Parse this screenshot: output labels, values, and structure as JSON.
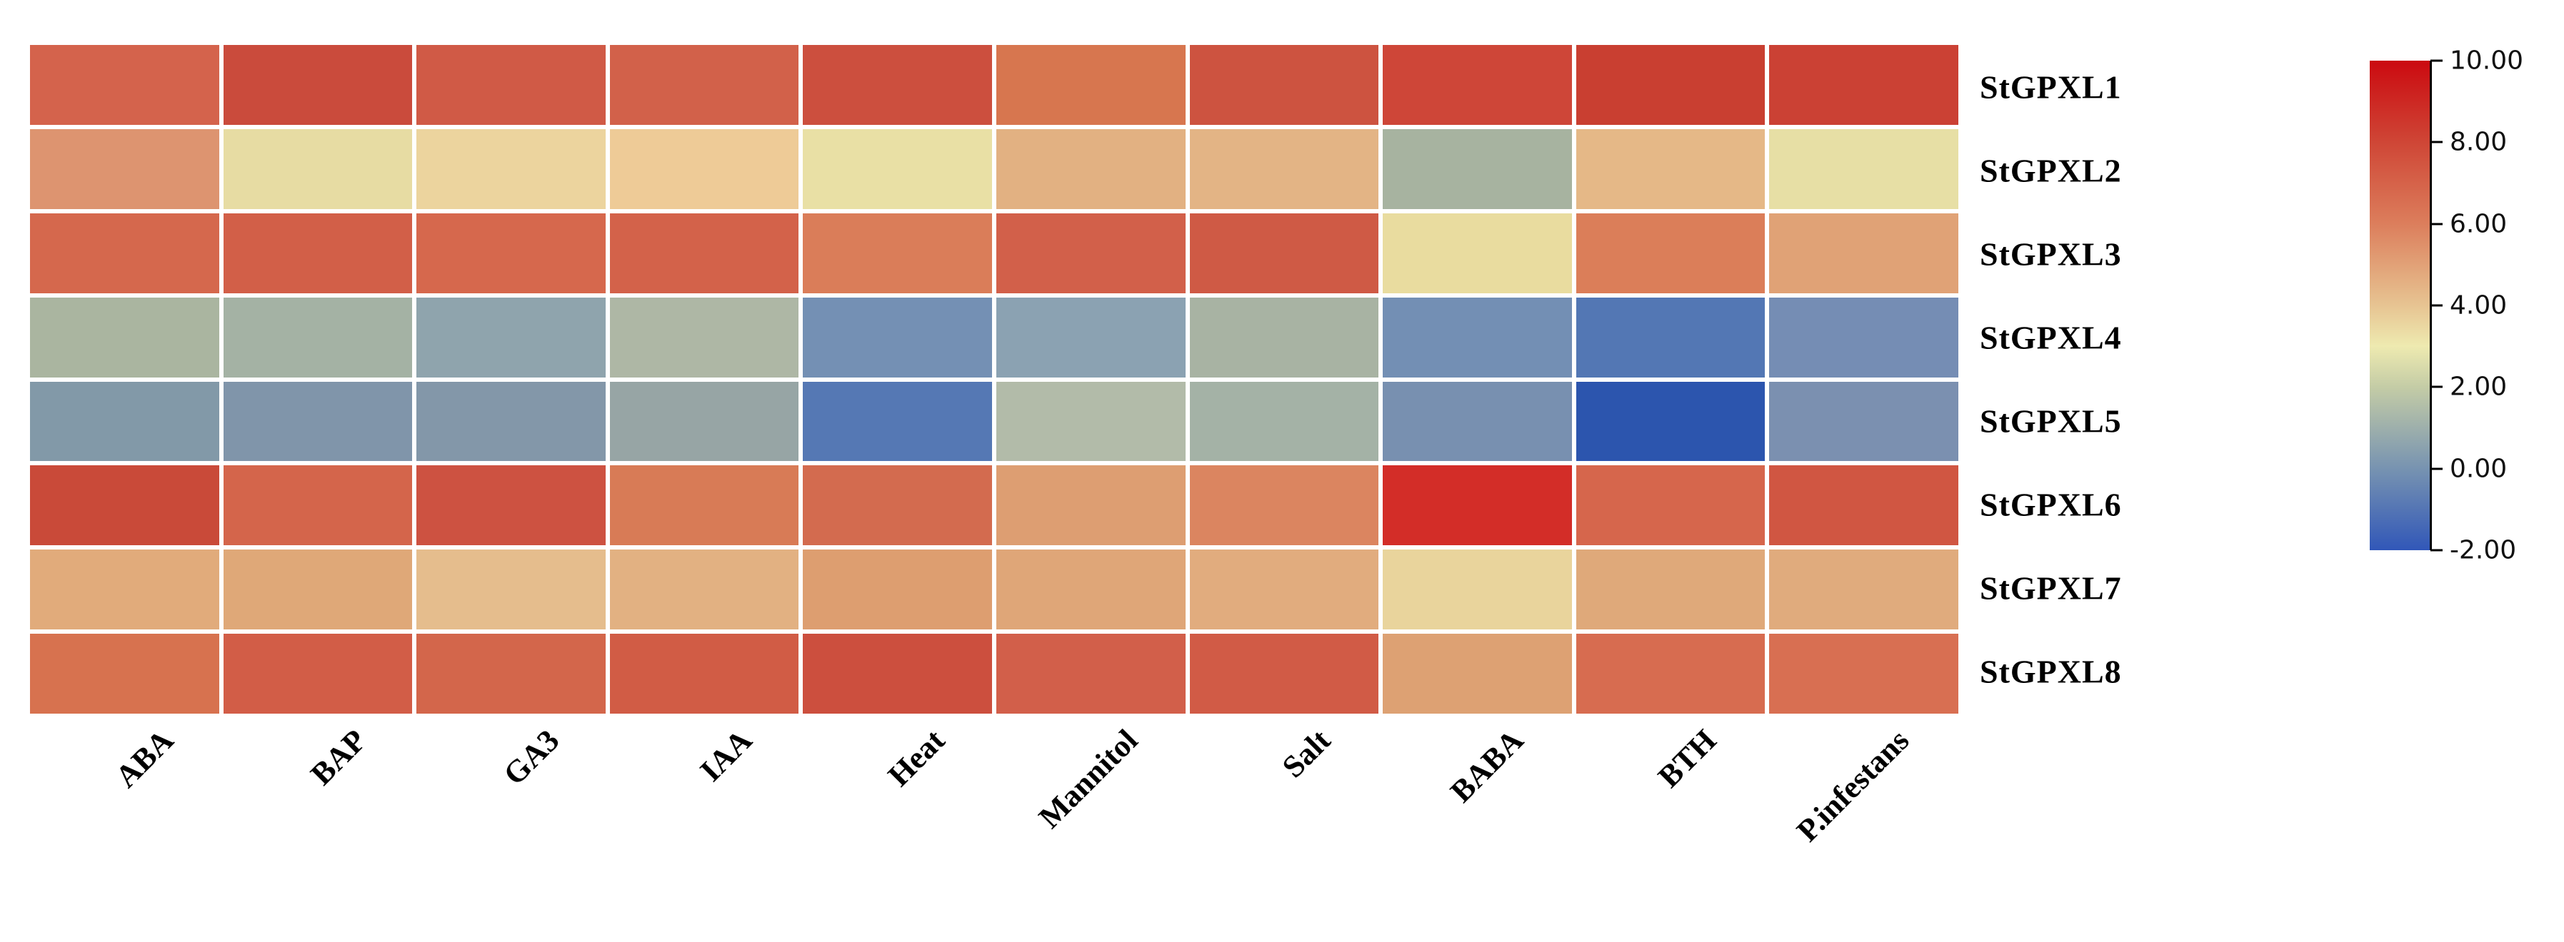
{
  "figure": {
    "description": "Expression heatmap of StGPXL genes under hormone, abiotic and biotic stress treatments",
    "background_color": "#ffffff",
    "grid_gap_color": "#ffffff"
  },
  "chart_data": {
    "type": "heatmap",
    "title": "",
    "xlabel": "",
    "ylabel": "",
    "legend_position": "right",
    "grid": false,
    "rows": [
      "StGPXL1",
      "StGPXL2",
      "StGPXL3",
      "StGPXL4",
      "StGPXL5",
      "StGPXL6",
      "StGPXL7",
      "StGPXL8"
    ],
    "columns": [
      "ABA",
      "BAP",
      "GA3",
      "IAA",
      "Heat",
      "Mannitol",
      "Salt",
      "BABA",
      "BTH",
      "P.infestans"
    ],
    "values": [
      [
        6.8,
        7.8,
        7.2,
        7.0,
        7.7,
        6.2,
        7.5,
        8.0,
        8.2,
        8.1
      ],
      [
        5.2,
        3.3,
        3.7,
        4.0,
        3.2,
        4.5,
        4.4,
        1.2,
        4.4,
        3.2
      ],
      [
        6.6,
        6.9,
        6.6,
        6.8,
        6.0,
        6.9,
        7.2,
        3.2,
        6.0,
        5.0
      ],
      [
        1.4,
        1.2,
        0.4,
        1.5,
        -0.4,
        0.3,
        1.3,
        -0.4,
        -1.2,
        -0.4
      ],
      [
        0.2,
        0.1,
        0.2,
        0.9,
        -1.2,
        1.7,
        1.2,
        -0.2,
        -1.9,
        -0.1
      ],
      [
        7.9,
        6.7,
        7.5,
        6.1,
        6.5,
        5.1,
        5.8,
        9.3,
        6.6,
        7.3
      ],
      [
        4.7,
        4.8,
        4.2,
        4.5,
        5.0,
        4.8,
        4.6,
        3.5,
        4.7,
        4.7
      ],
      [
        6.3,
        7.0,
        6.7,
        7.1,
        7.6,
        7.0,
        7.1,
        5.0,
        6.4,
        6.3
      ]
    ],
    "cell_colors": [
      [
        "#d4634c",
        "#ca4b3c",
        "#d05a46",
        "#d2614a",
        "#cc4f3e",
        "#d7764f",
        "#cd5340",
        "#ce4638",
        "#c93f31",
        "#cb4134"
      ],
      [
        "#dd9470",
        "#e7dca3",
        "#ecd49e",
        "#eecb97",
        "#e9e0a5",
        "#e2b182",
        "#e3b485",
        "#a7b3a0",
        "#e5b887",
        "#e7dfa5"
      ],
      [
        "#d5684d",
        "#d25f48",
        "#d6684d",
        "#d3624a",
        "#da7d59",
        "#d2604a",
        "#cf5a45",
        "#e9dc9f",
        "#db7e59",
        "#e0a276"
      ],
      [
        "#aab5a0",
        "#a4b2a4",
        "#8fa4ad",
        "#aeb7a5",
        "#7490b4",
        "#8ba2b2",
        "#a8b3a3",
        "#738fb4",
        "#5377b4",
        "#758db4"
      ],
      [
        "#8299a8",
        "#8095aa",
        "#8397a9",
        "#97a5a5",
        "#5578b4",
        "#b2bba9",
        "#a4b2a6",
        "#7890b0",
        "#2c55ae",
        "#7b90b0"
      ],
      [
        "#c94a39",
        "#d4654b",
        "#cd5241",
        "#d87b56",
        "#d36b4f",
        "#dd9e72",
        "#db8560",
        "#d32d28",
        "#d6664c",
        "#d05642"
      ],
      [
        "#e1ab7b",
        "#dfa878",
        "#e5bd8d",
        "#e2b182",
        "#dd9e70",
        "#dfa678",
        "#e1ac7e",
        "#e9d49c",
        "#dfa97a",
        "#e0ab7d"
      ],
      [
        "#d7724f",
        "#d25d47",
        "#d3664b",
        "#d15c45",
        "#cc4f3e",
        "#d25f4a",
        "#d15b46",
        "#dda173",
        "#d76c50",
        "#d86f52"
      ]
    ],
    "colorbar": {
      "min": -2.0,
      "max": 10.0,
      "tick_labels": [
        "10.00",
        "8.00",
        "6.00",
        "4.00",
        "2.00",
        "0.00",
        "-2.00"
      ],
      "tick_values": [
        10,
        8,
        6,
        4,
        2,
        0,
        -2
      ],
      "gradient": [
        {
          "value": 10,
          "color": "#cb0a10"
        },
        {
          "value": 8,
          "color": "#cf4636"
        },
        {
          "value": 6,
          "color": "#dc7e5c"
        },
        {
          "value": 4,
          "color": "#e7c492"
        },
        {
          "value": 3,
          "color": "#eeeab0"
        },
        {
          "value": 2,
          "color": "#c4cca6"
        },
        {
          "value": 0,
          "color": "#7793b1"
        },
        {
          "value": -2,
          "color": "#3157b8"
        }
      ]
    }
  }
}
